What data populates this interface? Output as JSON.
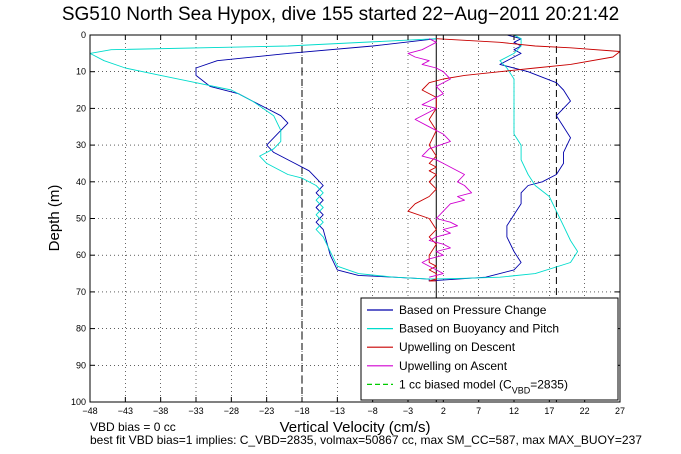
{
  "chart_data": {
    "type": "line",
    "title": "SG510 North Sea Hypox, dive 155 started 22−Aug−2011 20:21:42",
    "xlabel": "Vertical Velocity (cm/s)",
    "ylabel": "Depth (m)",
    "xlim": [
      -48,
      27
    ],
    "ylim": [
      0,
      100
    ],
    "y_reversed": true,
    "grid": true,
    "legend_position": "bottom-right",
    "x_ticks": [
      -48,
      -43,
      -38,
      -33,
      -28,
      -23,
      -18,
      -13,
      -8,
      -3,
      2,
      7,
      12,
      17,
      22,
      27
    ],
    "y_ticks": [
      0,
      10,
      20,
      30,
      40,
      50,
      60,
      70,
      80,
      90,
      100
    ],
    "x_tick_labels": [
      "−48",
      "−43",
      "−38",
      "−33",
      "−28",
      "−23",
      "−18",
      "−13",
      "−8",
      "−3",
      "2",
      "7",
      "12",
      "17",
      "22",
      "27"
    ],
    "y_tick_labels": [
      "0",
      "10",
      "20",
      "30",
      "40",
      "50",
      "60",
      "70",
      "80",
      "90",
      "100"
    ],
    "reference_lines": [
      {
        "x": -18,
        "style": "dashed",
        "color": "#000000"
      },
      {
        "x": 1,
        "style": "solid",
        "color": "#000000"
      },
      {
        "x": 18,
        "style": "dashed",
        "color": "#000000"
      }
    ],
    "series": [
      {
        "name": "Based on Pressure Change",
        "color": "#0000aa",
        "x": [
          1,
          -8,
          -20,
          -30,
          -33,
          -33,
          -31,
          -27,
          -25,
          -23,
          -21,
          -20,
          -21,
          -22,
          -23,
          -22,
          -19,
          -17,
          -16,
          -15,
          -16,
          -15,
          -16,
          -15,
          -16,
          -15,
          -14,
          -13,
          -10,
          -5,
          0,
          0,
          8,
          12,
          13,
          12,
          11,
          11,
          12,
          13,
          13,
          14,
          16,
          18,
          19,
          19,
          20,
          19,
          18,
          20,
          19,
          18,
          14,
          10,
          12,
          13,
          12,
          13,
          12,
          13,
          11
        ],
        "y": [
          1,
          3,
          5,
          7,
          9,
          11,
          14,
          16,
          18,
          20,
          22,
          24,
          26,
          28,
          30,
          32,
          35,
          37,
          39,
          41,
          43,
          45,
          47,
          49,
          51,
          53,
          60,
          64,
          65.5,
          66,
          66.5,
          67,
          66,
          64,
          62,
          59,
          55,
          52,
          49,
          46,
          43,
          41,
          40,
          38,
          35,
          32,
          28,
          25,
          22,
          18,
          15,
          13,
          10,
          8,
          6,
          5,
          4,
          3,
          2,
          1,
          0
        ]
      },
      {
        "name": "Based on Buoyancy and Pitch",
        "color": "#00dccc",
        "x": [
          1,
          -20,
          -45,
          -48,
          -46,
          -43,
          -38,
          -33,
          -28,
          -25,
          -22,
          -21,
          -21,
          -22,
          -24,
          -23,
          -20,
          -18,
          -16,
          -15,
          -16,
          -15,
          -16,
          -15,
          -16,
          -15,
          -13,
          -10,
          -5,
          0,
          5,
          10,
          15,
          20,
          21,
          20,
          19,
          18,
          17,
          15,
          14,
          13,
          13,
          12,
          12,
          12,
          12,
          12,
          11,
          10,
          12,
          13,
          13,
          12
        ],
        "y": [
          1,
          3,
          4,
          5,
          7,
          9,
          11,
          13,
          15,
          18,
          22,
          26,
          29,
          31,
          33,
          35,
          38,
          39,
          41,
          43,
          45,
          47,
          49,
          51,
          53,
          55,
          63,
          65,
          66,
          66.5,
          66.3,
          66,
          65,
          62,
          59,
          56,
          52,
          48,
          44,
          41,
          38,
          34,
          30,
          27,
          23,
          19,
          15,
          12,
          9,
          7,
          5,
          3,
          1,
          0
        ]
      },
      {
        "name": "Upwelling on Descent",
        "color": "#c80000",
        "x": [
          1,
          10,
          15,
          20,
          27,
          26,
          20,
          15,
          10,
          5,
          2,
          0,
          -1,
          1,
          1,
          0,
          1,
          0,
          1,
          0,
          1,
          0,
          1,
          0,
          1,
          0,
          -2,
          -3,
          0,
          1,
          0,
          1,
          0,
          0,
          1,
          0,
          1,
          1,
          1,
          0,
          1,
          0
        ],
        "y": [
          1,
          2,
          3,
          3.5,
          4.5,
          6,
          8,
          9,
          10,
          11,
          12,
          13,
          15,
          17,
          20,
          23,
          26,
          30,
          33,
          35,
          36,
          37,
          38,
          40,
          42,
          44,
          46,
          48,
          50,
          53,
          55,
          57,
          60,
          62,
          63,
          64,
          65,
          66,
          66.5,
          67,
          67,
          67
        ]
      },
      {
        "name": "Upwelling on Ascent",
        "color": "#d000d0",
        "x": [
          0,
          2,
          1,
          -1,
          0,
          2,
          1,
          3,
          2,
          0,
          1,
          3,
          2,
          4,
          3,
          1,
          2,
          3,
          5,
          4,
          6,
          5,
          4,
          5,
          3,
          2,
          1,
          -1,
          0,
          3,
          2,
          0,
          -2,
          0,
          1,
          -1,
          0,
          2,
          1,
          3,
          2,
          1,
          -1,
          0,
          -2,
          -3,
          -1,
          0,
          1,
          0
        ],
        "y": [
          66,
          65,
          64,
          62,
          61,
          60,
          59,
          58,
          57,
          56,
          55,
          54,
          53,
          52,
          51,
          50,
          48,
          46,
          45,
          44,
          43,
          41,
          40,
          38,
          36,
          35,
          34,
          33,
          31,
          29,
          27,
          25,
          23,
          21,
          20,
          19,
          18,
          16,
          14,
          12,
          10,
          9,
          8,
          7,
          6,
          5,
          4,
          3,
          2,
          1
        ]
      },
      {
        "name": "1 cc biased model (C_VBD=2835)",
        "color": "#00cc00",
        "style": "dashed",
        "x": [],
        "y": []
      }
    ],
    "legend": {
      "entries": [
        "Based on Pressure Change",
        "Based on Buoyancy and Pitch",
        "Upwelling on Descent",
        "Upwelling on Ascent"
      ],
      "last_prefix": "1 cc biased model (C",
      "last_sub": "VBD",
      "last_suffix": "=2835)"
    }
  },
  "footer": {
    "line1": "VBD bias = 0 cc",
    "line2": "best fit VBD bias=1 implies: C_VBD=2835, volmax=50867 cc, max SM_CC=587, max MAX_BUOY=237"
  }
}
